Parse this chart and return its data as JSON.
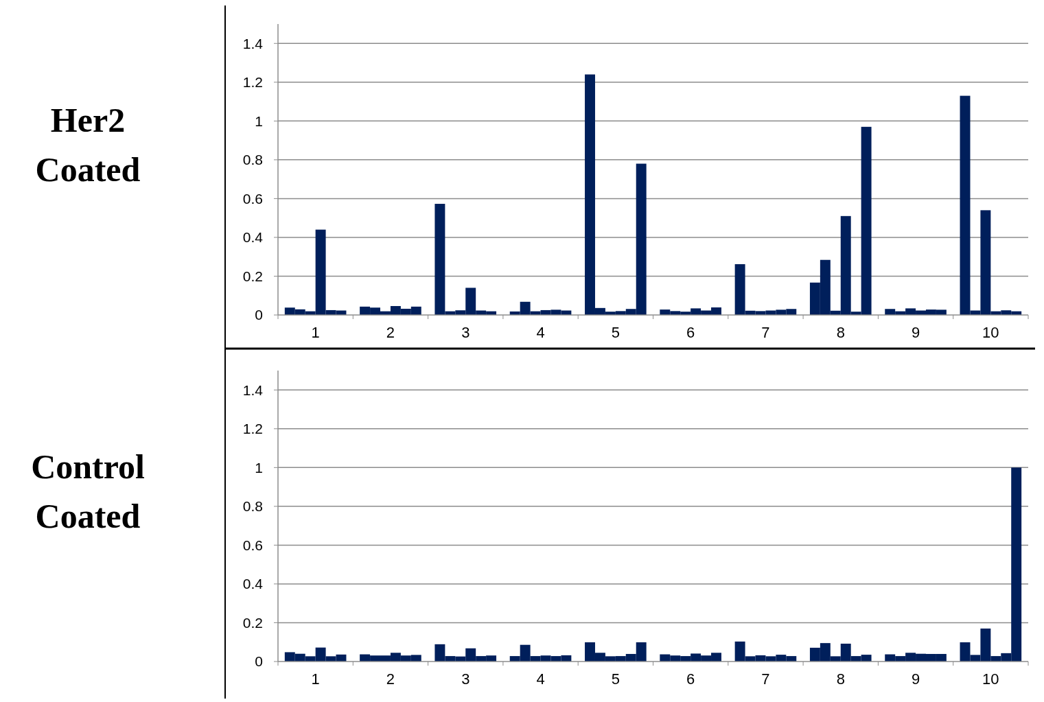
{
  "chart_data": [
    {
      "type": "bar",
      "title": "Her2 Coated",
      "categories": [
        "1",
        "2",
        "3",
        "4",
        "5",
        "6",
        "7",
        "8",
        "9",
        "10"
      ],
      "ylim": [
        0,
        1.5
      ],
      "yticks": [
        0,
        0.2,
        0.4,
        0.6,
        0.8,
        1,
        1.2,
        1.4
      ],
      "grid": "y",
      "series": [
        {
          "color": "#001f5b",
          "values": [
            0.038,
            0.043,
            0.573,
            0.018,
            1.24,
            0.028,
            0.262,
            0.167,
            0.031,
            1.13
          ]
        },
        {
          "color": "#001f5b",
          "values": [
            0.029,
            0.038,
            0.019,
            0.068,
            0.036,
            0.02,
            0.022,
            0.284,
            0.019,
            0.023
          ]
        },
        {
          "color": "#001f5b",
          "values": [
            0.019,
            0.019,
            0.024,
            0.019,
            0.017,
            0.017,
            0.02,
            0.022,
            0.034,
            0.54
          ]
        },
        {
          "color": "#001f5b",
          "values": [
            0.44,
            0.046,
            0.14,
            0.025,
            0.02,
            0.034,
            0.023,
            0.51,
            0.023,
            0.019
          ]
        },
        {
          "color": "#001f5b",
          "values": [
            0.025,
            0.032,
            0.023,
            0.027,
            0.031,
            0.023,
            0.027,
            0.017,
            0.028,
            0.024
          ]
        },
        {
          "color": "#001f5b",
          "values": [
            0.023,
            0.043,
            0.019,
            0.023,
            0.78,
            0.039,
            0.031,
            0.97,
            0.027,
            0.019
          ]
        }
      ]
    },
    {
      "type": "bar",
      "title": "Control Coated",
      "categories": [
        "1",
        "2",
        "3",
        "4",
        "5",
        "6",
        "7",
        "8",
        "9",
        "10"
      ],
      "ylim": [
        0,
        1.5
      ],
      "yticks": [
        0,
        0.2,
        0.4,
        0.6,
        0.8,
        1,
        1.2,
        1.4
      ],
      "grid": "y",
      "series": [
        {
          "color": "#001f5b",
          "values": [
            0.048,
            0.037,
            0.089,
            0.028,
            0.099,
            0.037,
            0.103,
            0.071,
            0.037,
            0.099
          ]
        },
        {
          "color": "#001f5b",
          "values": [
            0.04,
            0.031,
            0.028,
            0.086,
            0.045,
            0.031,
            0.027,
            0.095,
            0.028,
            0.034
          ]
        },
        {
          "color": "#001f5b",
          "values": [
            0.027,
            0.031,
            0.026,
            0.028,
            0.027,
            0.028,
            0.032,
            0.027,
            0.045,
            0.17
          ]
        },
        {
          "color": "#001f5b",
          "values": [
            0.072,
            0.045,
            0.068,
            0.031,
            0.028,
            0.041,
            0.027,
            0.092,
            0.04,
            0.028
          ]
        },
        {
          "color": "#001f5b",
          "values": [
            0.027,
            0.031,
            0.028,
            0.028,
            0.039,
            0.031,
            0.035,
            0.028,
            0.039,
            0.043
          ]
        },
        {
          "color": "#001f5b",
          "values": [
            0.036,
            0.034,
            0.031,
            0.032,
            0.099,
            0.045,
            0.028,
            0.035,
            0.039,
            1.0
          ]
        }
      ]
    }
  ]
}
